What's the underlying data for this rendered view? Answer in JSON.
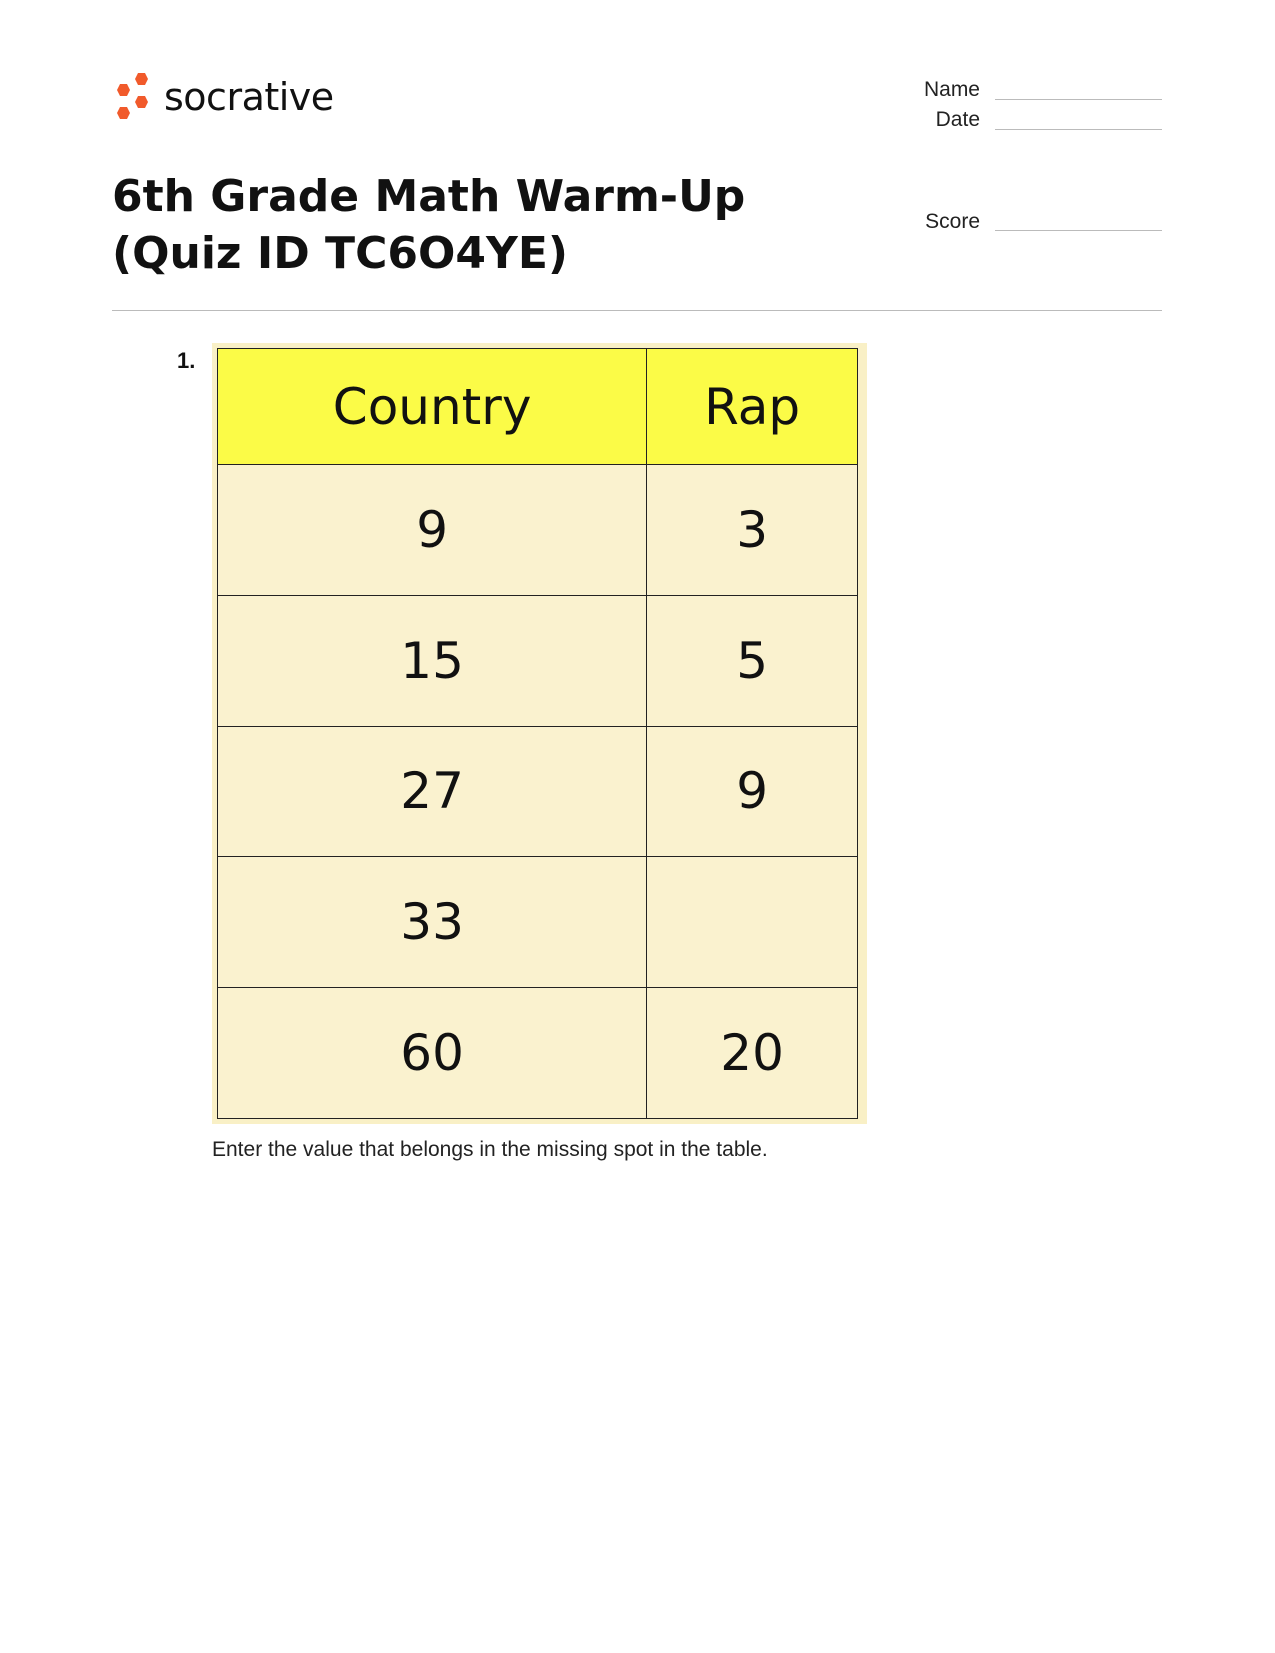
{
  "brand": {
    "name": "socrative",
    "logo_color": "#f15a2b"
  },
  "header": {
    "title": "6th Grade Math Warm-Up (Quiz ID TC6O4YE)",
    "fields": [
      {
        "label": "Name"
      },
      {
        "label": "Date"
      },
      {
        "label": "Score"
      }
    ]
  },
  "question": {
    "number": "1.",
    "table": {
      "headers": [
        "Country",
        "Rap"
      ],
      "rows": [
        [
          "9",
          "3"
        ],
        [
          "15",
          "5"
        ],
        [
          "27",
          "9"
        ],
        [
          "33",
          ""
        ],
        [
          "60",
          "20"
        ]
      ]
    },
    "prompt": "Enter the value that belongs in the missing spot in the table."
  }
}
